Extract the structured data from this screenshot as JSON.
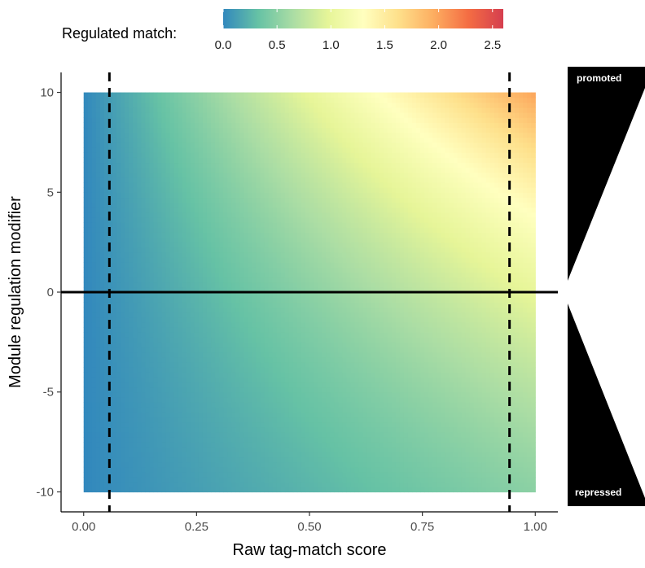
{
  "chart_data": {
    "type": "heatmap",
    "title": "",
    "xlabel": "Raw tag-match score",
    "ylabel": "Module regulation modifier",
    "xlim": [
      -0.05,
      1.05
    ],
    "ylim": [
      -11,
      11
    ],
    "data_extent": {
      "x": [
        0,
        1
      ],
      "y": [
        -10,
        10
      ]
    },
    "x_ticks": [
      0.0,
      0.25,
      0.5,
      0.75,
      1.0
    ],
    "x_tick_labels": [
      "0.00",
      "0.25",
      "0.50",
      "0.75",
      "1.00"
    ],
    "y_ticks": [
      -10,
      -5,
      0,
      5,
      10
    ],
    "y_tick_labels": [
      "-10",
      "-5",
      "0",
      "5",
      "10"
    ],
    "value_model": "regulated = raw * 1.0718^modifier (approx.)",
    "corner_values": {
      "raw0_mod_any": 0.0,
      "raw1_mod_0": 1.0,
      "raw1_mod_10": 2.0,
      "raw1_mod_minus10": 0.5
    },
    "legend": {
      "title": "Regulated match:",
      "position": "top",
      "range": [
        0.0,
        2.6
      ],
      "ticks": [
        0.0,
        0.5,
        1.0,
        1.5,
        2.0,
        2.5
      ],
      "tick_labels": [
        "0.0",
        "0.5",
        "1.0",
        "1.5",
        "2.0",
        "2.5"
      ],
      "colormap": "Spectral (reversed)",
      "colors": [
        "#3288bd",
        "#66c2a5",
        "#abdda4",
        "#e6f598",
        "#ffffbf",
        "#fee08b",
        "#fdae61",
        "#f46d43",
        "#d53e4f"
      ]
    },
    "reference_lines": [
      {
        "type": "vertical",
        "x": 0.057,
        "style": "dashed"
      },
      {
        "type": "vertical",
        "x": 0.943,
        "style": "dashed"
      },
      {
        "type": "horizontal",
        "y": 0,
        "style": "solid"
      }
    ],
    "side_panel": {
      "top_label": "promoted",
      "bottom_label": "repressed",
      "fill": "#000000"
    }
  }
}
